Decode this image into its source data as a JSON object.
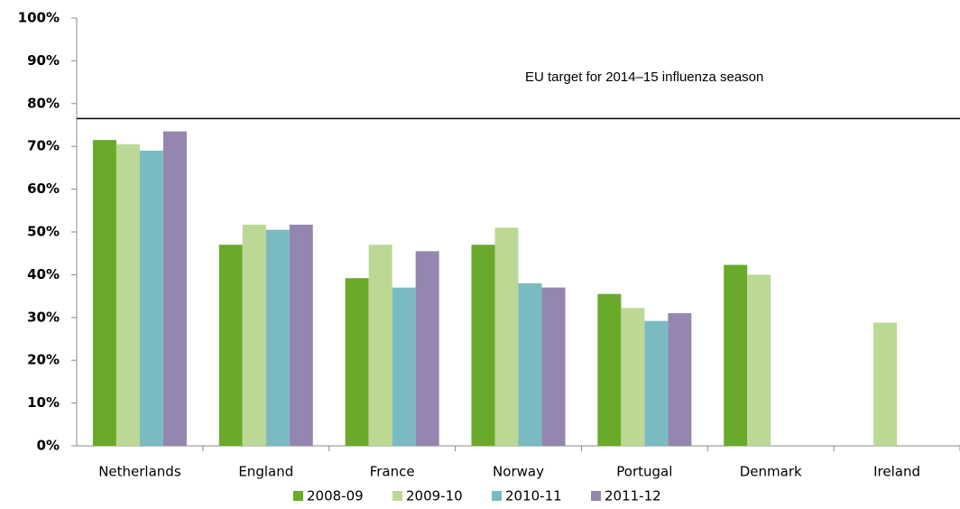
{
  "chart_data": {
    "type": "bar",
    "categories": [
      "Netherlands",
      "England",
      "France",
      "Norway",
      "Portugal",
      "Denmark",
      "Ireland"
    ],
    "series": [
      {
        "name": "2008-09",
        "color": "#6aaa2a",
        "values": [
          71.5,
          47,
          39.2,
          47,
          35.5,
          42.3,
          null
        ]
      },
      {
        "name": "2009-10",
        "color": "#bcd895",
        "values": [
          70.5,
          51.7,
          47,
          51,
          32.2,
          40,
          28.8
        ]
      },
      {
        "name": "2010-11",
        "color": "#7abbc2",
        "values": [
          69,
          50.5,
          37,
          38,
          29.2,
          null,
          null
        ]
      },
      {
        "name": "2011-12",
        "color": "#9486b0",
        "values": [
          73.5,
          51.7,
          45.5,
          37,
          31,
          null,
          null
        ]
      }
    ],
    "ylim": [
      0,
      100
    ],
    "yticks": [
      {
        "value": 0,
        "label": "0%"
      },
      {
        "value": 10,
        "label": "10%"
      },
      {
        "value": 20,
        "label": "20%"
      },
      {
        "value": 30,
        "label": "30%"
      },
      {
        "value": 40,
        "label": "40%"
      },
      {
        "value": 50,
        "label": "50%"
      },
      {
        "value": 60,
        "label": "60%"
      },
      {
        "value": 70,
        "label": "70%"
      },
      {
        "value": 80,
        "label": "80%"
      },
      {
        "value": 90,
        "label": "90%"
      },
      {
        "value": 100,
        "label": "100%"
      }
    ],
    "target": {
      "value": 76.5,
      "label": "EU target for 2014–15 influenza season"
    },
    "grid": false,
    "legend": "bottom"
  }
}
